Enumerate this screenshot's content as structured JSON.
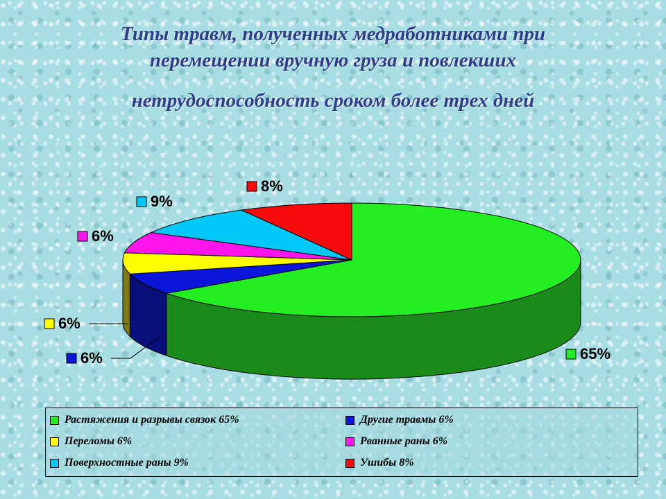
{
  "title": {
    "line1": "Типы травм, полученных медработниками при",
    "line2": "перемещении вручную груза и повлекших",
    "line3": "нетрудоспособность сроком более трех дней"
  },
  "chart_data": {
    "type": "pie",
    "style": "3d",
    "slices": [
      {
        "name": "Растяжения и разрывы связок 65%",
        "label": "65%",
        "value": 65,
        "color": "#22ee22",
        "side_color": "#1a8a1a"
      },
      {
        "name": "Другие травмы 6%",
        "label": "6%",
        "value": 6,
        "color": "#0a16d8",
        "side_color": "#080f7a"
      },
      {
        "name": "Переломы 6%",
        "label": "6%",
        "value": 6,
        "color": "#ffff00",
        "side_color": "#7f7a16"
      },
      {
        "name": "Рванные раны 6%",
        "label": "6%",
        "value": 6,
        "color": "#ff16ea",
        "side_color": "#7a0a70"
      },
      {
        "name": "Поверхностные раны 9%",
        "label": "9%",
        "value": 9,
        "color": "#00c8f6",
        "side_color": "#00647a"
      },
      {
        "name": "Ушибы 8%",
        "label": "8%",
        "value": 8,
        "color": "#f50a0a",
        "side_color": "#7a0505"
      }
    ],
    "legend_position": "bottom"
  }
}
